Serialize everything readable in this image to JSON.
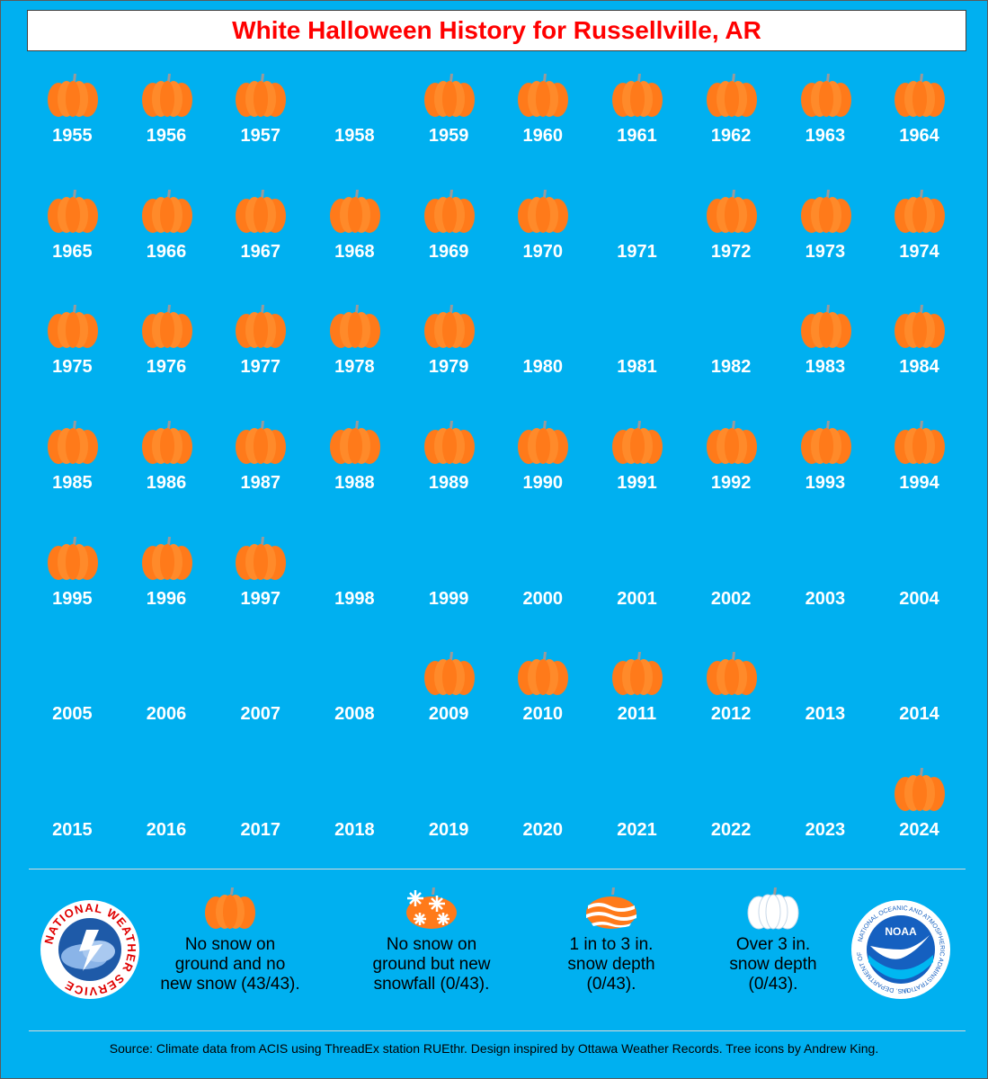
{
  "title": "White Halloween History for Russellville, AR",
  "colors": {
    "background": "#00b0f0",
    "title_text": "#ff0000",
    "pumpkin": "#ff7a1a",
    "year_text": "#ffffff"
  },
  "years": [
    {
      "year": "1955",
      "pumpkin": true
    },
    {
      "year": "1956",
      "pumpkin": true
    },
    {
      "year": "1957",
      "pumpkin": true
    },
    {
      "year": "1958",
      "pumpkin": false
    },
    {
      "year": "1959",
      "pumpkin": true
    },
    {
      "year": "1960",
      "pumpkin": true
    },
    {
      "year": "1961",
      "pumpkin": true
    },
    {
      "year": "1962",
      "pumpkin": true
    },
    {
      "year": "1963",
      "pumpkin": true
    },
    {
      "year": "1964",
      "pumpkin": true
    },
    {
      "year": "1965",
      "pumpkin": true
    },
    {
      "year": "1966",
      "pumpkin": true
    },
    {
      "year": "1967",
      "pumpkin": true
    },
    {
      "year": "1968",
      "pumpkin": true
    },
    {
      "year": "1969",
      "pumpkin": true
    },
    {
      "year": "1970",
      "pumpkin": true
    },
    {
      "year": "1971",
      "pumpkin": false
    },
    {
      "year": "1972",
      "pumpkin": true
    },
    {
      "year": "1973",
      "pumpkin": true
    },
    {
      "year": "1974",
      "pumpkin": true
    },
    {
      "year": "1975",
      "pumpkin": true
    },
    {
      "year": "1976",
      "pumpkin": true
    },
    {
      "year": "1977",
      "pumpkin": true
    },
    {
      "year": "1978",
      "pumpkin": true
    },
    {
      "year": "1979",
      "pumpkin": true
    },
    {
      "year": "1980",
      "pumpkin": false
    },
    {
      "year": "1981",
      "pumpkin": false
    },
    {
      "year": "1982",
      "pumpkin": false
    },
    {
      "year": "1983",
      "pumpkin": true
    },
    {
      "year": "1984",
      "pumpkin": true
    },
    {
      "year": "1985",
      "pumpkin": true
    },
    {
      "year": "1986",
      "pumpkin": true
    },
    {
      "year": "1987",
      "pumpkin": true
    },
    {
      "year": "1988",
      "pumpkin": true
    },
    {
      "year": "1989",
      "pumpkin": true
    },
    {
      "year": "1990",
      "pumpkin": true
    },
    {
      "year": "1991",
      "pumpkin": true
    },
    {
      "year": "1992",
      "pumpkin": true
    },
    {
      "year": "1993",
      "pumpkin": true
    },
    {
      "year": "1994",
      "pumpkin": true
    },
    {
      "year": "1995",
      "pumpkin": true
    },
    {
      "year": "1996",
      "pumpkin": true
    },
    {
      "year": "1997",
      "pumpkin": true
    },
    {
      "year": "1998",
      "pumpkin": false
    },
    {
      "year": "1999",
      "pumpkin": false
    },
    {
      "year": "2000",
      "pumpkin": false
    },
    {
      "year": "2001",
      "pumpkin": false
    },
    {
      "year": "2002",
      "pumpkin": false
    },
    {
      "year": "2003",
      "pumpkin": false
    },
    {
      "year": "2004",
      "pumpkin": false
    },
    {
      "year": "2005",
      "pumpkin": false
    },
    {
      "year": "2006",
      "pumpkin": false
    },
    {
      "year": "2007",
      "pumpkin": false
    },
    {
      "year": "2008",
      "pumpkin": false
    },
    {
      "year": "2009",
      "pumpkin": true
    },
    {
      "year": "2010",
      "pumpkin": true
    },
    {
      "year": "2011",
      "pumpkin": true
    },
    {
      "year": "2012",
      "pumpkin": true
    },
    {
      "year": "2013",
      "pumpkin": false
    },
    {
      "year": "2014",
      "pumpkin": false
    },
    {
      "year": "2015",
      "pumpkin": false
    },
    {
      "year": "2016",
      "pumpkin": false
    },
    {
      "year": "2017",
      "pumpkin": false
    },
    {
      "year": "2018",
      "pumpkin": false
    },
    {
      "year": "2019",
      "pumpkin": false
    },
    {
      "year": "2020",
      "pumpkin": false
    },
    {
      "year": "2021",
      "pumpkin": false
    },
    {
      "year": "2022",
      "pumpkin": false
    },
    {
      "year": "2023",
      "pumpkin": false
    },
    {
      "year": "2024",
      "pumpkin": true
    }
  ],
  "legend": {
    "no_snow": {
      "line1": "No snow on",
      "line2": "ground and no",
      "line3": "new snow (43/43)."
    },
    "new_snowfall": {
      "line1": "No snow on",
      "line2": "ground but new",
      "line3": "snowfall (0/43)."
    },
    "depth_1_3": {
      "line1": "1 in to 3 in.",
      "line2": "snow depth",
      "line3": "(0/43)."
    },
    "depth_over_3": {
      "line1": "Over 3 in.",
      "line2": "snow depth",
      "line3": "(0/43)."
    }
  },
  "logos": {
    "nws_text": "NATIONAL WEATHER SERVICE",
    "noaa_center": "NOAA",
    "noaa_ring": "NATIONAL OCEANIC AND ATMOSPHERIC ADMINISTRATION",
    "noaa_ring_bottom": "U.S. DEPARTMENT OF COMMERCE"
  },
  "source": "Source: Climate data from ACIS using ThreadEx station RUEthr. Design inspired by Ottawa Weather Records. Tree icons by Andrew King."
}
